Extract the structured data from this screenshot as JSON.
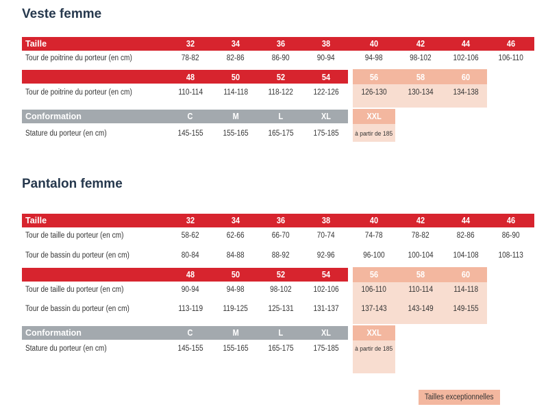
{
  "veste": {
    "title": "Veste femme",
    "t1": {
      "header_label": "Taille",
      "sizes": [
        "32",
        "34",
        "36",
        "38",
        "40",
        "42",
        "44",
        "46"
      ],
      "row_label": "Tour de poitrine du porteur (en cm)",
      "values": [
        "78-82",
        "82-86",
        "86-90",
        "90-94",
        "94-98",
        "98-102",
        "102-106",
        "106-110"
      ]
    },
    "t2": {
      "sizes": [
        "48",
        "50",
        "52",
        "54",
        "56",
        "58",
        "60"
      ],
      "row_label": "Tour de poitrine du porteur (en cm)",
      "values": [
        "110-114",
        "114-118",
        "118-122",
        "122-126",
        "126-130",
        "130-134",
        "134-138"
      ]
    },
    "t3": {
      "header_label": "Conformation",
      "sizes": [
        "C",
        "M",
        "L",
        "XL",
        "XXL"
      ],
      "row_label": "Stature du porteur (en cm)",
      "values": [
        "145-155",
        "155-165",
        "165-175",
        "175-185",
        "à partir de 185"
      ]
    }
  },
  "pantalon": {
    "title": "Pantalon femme",
    "t1": {
      "header_label": "Taille",
      "sizes": [
        "32",
        "34",
        "36",
        "38",
        "40",
        "42",
        "44",
        "46"
      ],
      "row1_label": "Tour de taille du porteur (en cm)",
      "row1_values": [
        "58-62",
        "62-66",
        "66-70",
        "70-74",
        "74-78",
        "78-82",
        "82-86",
        "86-90"
      ],
      "row2_label": "Tour de bassin du porteur (en cm)",
      "row2_values": [
        "80-84",
        "84-88",
        "88-92",
        "92-96",
        "96-100",
        "100-104",
        "104-108",
        "108-113"
      ]
    },
    "t2": {
      "sizes": [
        "48",
        "50",
        "52",
        "54",
        "56",
        "58",
        "60"
      ],
      "row1_label": "Tour de taille du porteur (en cm)",
      "row1_values": [
        "90-94",
        "94-98",
        "98-102",
        "102-106",
        "106-110",
        "110-114",
        "114-118"
      ],
      "row2_label": "Tour de bassin du porteur (en cm)",
      "row2_values": [
        "113-119",
        "119-125",
        "125-131",
        "131-137",
        "137-143",
        "143-149",
        "149-155"
      ]
    },
    "t3": {
      "header_label": "Conformation",
      "sizes": [
        "C",
        "M",
        "L",
        "XL",
        "XXL"
      ],
      "row_label": "Stature du porteur (en cm)",
      "values": [
        "145-155",
        "155-165",
        "165-175",
        "175-185",
        "à partir de 185"
      ]
    }
  },
  "legend": {
    "label": "Tailles exceptionnelles"
  },
  "colors": {
    "header_red": "#d7242e",
    "header_grey": "#a3a9ae",
    "exceptional": "#f3b79f",
    "exceptional_light": "#f8ddd0",
    "title": "#26384d"
  }
}
